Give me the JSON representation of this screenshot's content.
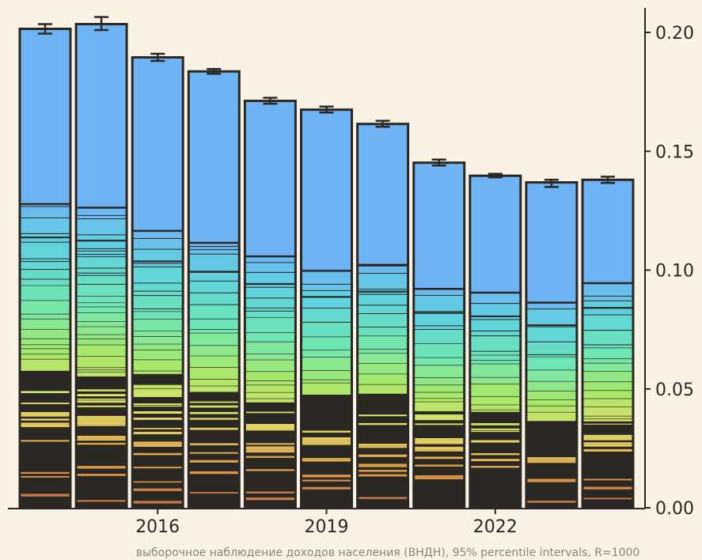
{
  "chart_data": {
    "type": "bar",
    "stacked": true,
    "categories": [
      "2014",
      "2015",
      "2016",
      "2017",
      "2018",
      "2019",
      "2020",
      "2021",
      "2022",
      "2023",
      "2024"
    ],
    "values": [
      0.2015,
      0.2035,
      0.1895,
      0.1836,
      0.1712,
      0.1675,
      0.1615,
      0.1452,
      0.1397,
      0.1369,
      0.138
    ],
    "error_low": [
      0.1995,
      0.201,
      0.188,
      0.1826,
      0.17,
      0.1663,
      0.1603,
      0.144,
      0.139,
      0.135,
      0.1367
    ],
    "error_high": [
      0.2035,
      0.2065,
      0.191,
      0.1846,
      0.1725,
      0.1688,
      0.1628,
      0.1465,
      0.1405,
      0.138,
      0.1393
    ],
    "top_segment_floor": [
      0.1278,
      0.1263,
      0.1165,
      0.1115,
      0.1058,
      0.0997,
      0.1022,
      0.0921,
      0.0905,
      0.0863,
      0.0945
    ],
    "xticks": [
      "2016",
      "2019",
      "2022"
    ],
    "yticks": [
      "0.00",
      "0.05",
      "0.10",
      "0.15",
      "0.20"
    ],
    "ylim": [
      0,
      0.21
    ],
    "y_axis_side": "right",
    "grid": false,
    "legend": "none",
    "caption": "выборочное наблюдение доходов населения (ВНДН), 95% percentile intervals, R=1000",
    "colors": {
      "background": "#faf3e5",
      "top_segment": "#6eb4f5",
      "segment_gradient": [
        "#6eb4f5",
        "#5fd3dc",
        "#6ee6b4",
        "#a6e86a",
        "#e4de6a",
        "#e0a04a",
        "#c0704a"
      ],
      "base": "#2b2824",
      "outline": "#2b2824"
    }
  }
}
